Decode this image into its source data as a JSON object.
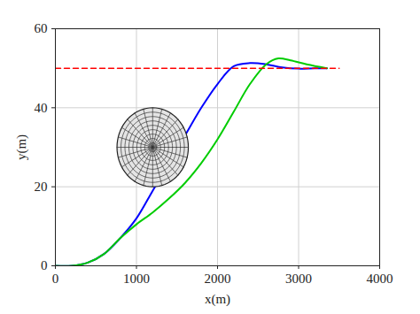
{
  "chart_data": {
    "type": "line",
    "x_label": "x(m)",
    "y_label": "y(m)",
    "xlim": [
      0,
      4000
    ],
    "xticks": [
      0,
      1000,
      2000,
      3000,
      4000
    ],
    "ylim": [
      0,
      60
    ],
    "yticks": [
      0,
      20,
      40,
      60
    ],
    "grid": true,
    "series": [
      {
        "color": "#0000ff",
        "line_style": "solid",
        "x": [
          0,
          200,
          400,
          600,
          800,
          1000,
          1200,
          1400,
          1600,
          1800,
          2000,
          2200,
          2400,
          2600,
          2800,
          3000,
          3200,
          3350
        ],
        "values": [
          0,
          0,
          0.8,
          3,
          7,
          12,
          19,
          26,
          33,
          40,
          46,
          50.5,
          51.3,
          51,
          50.2,
          49.9,
          50,
          50
        ]
      },
      {
        "color": "#00cc00",
        "line_style": "solid",
        "x": [
          0,
          200,
          400,
          600,
          800,
          1000,
          1200,
          1400,
          1600,
          1800,
          2000,
          2200,
          2400,
          2600,
          2750,
          2900,
          3100,
          3350
        ],
        "values": [
          0,
          0,
          0.8,
          3,
          7,
          10.5,
          13.5,
          17,
          21,
          26,
          32,
          39,
          46,
          51,
          52.5,
          52,
          51,
          50
        ]
      },
      {
        "color": "#ff0000",
        "line_style": "dashed",
        "x": [
          0,
          3500
        ],
        "values": [
          50,
          50
        ]
      }
    ],
    "obstacle": {
      "x": 1200,
      "y": 30,
      "rx": 440,
      "ry": 10
    }
  }
}
